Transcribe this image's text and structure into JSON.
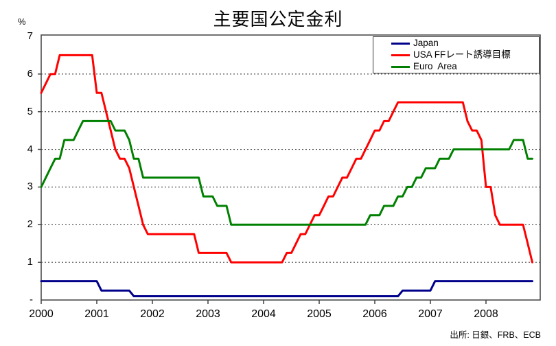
{
  "title": "主要国公定金利",
  "source_note": "出所: 日銀、FRB、ECB",
  "chart_data": {
    "type": "line",
    "title": "主要国公定金利",
    "xlabel": "",
    "ylabel": "%",
    "ylim": [
      0,
      7
    ],
    "grid": "horizontal-dotted",
    "legend_position": "top-right-inside",
    "x_start": "2000-01",
    "x_end": "2008-11",
    "x_ticks": [
      "2000",
      "2001",
      "2002",
      "2003",
      "2004",
      "2005",
      "2006",
      "2007",
      "2008"
    ],
    "y_ticks": [
      {
        "value": 7,
        "label": "7"
      },
      {
        "value": 6,
        "label": "6"
      },
      {
        "value": 5,
        "label": "5"
      },
      {
        "value": 4,
        "label": "4"
      },
      {
        "value": 3,
        "label": "3"
      },
      {
        "value": 2,
        "label": "2"
      },
      {
        "value": 1,
        "label": "1"
      },
      {
        "value": 0,
        "label": "-"
      }
    ],
    "series": [
      {
        "name": "Japan",
        "color": "#00008B",
        "rate_changes": [
          [
            "2000-01",
            0.5
          ],
          [
            "2001-02",
            0.25
          ],
          [
            "2001-09",
            0.1
          ],
          [
            "2006-07",
            0.25
          ],
          [
            "2007-02",
            0.5
          ]
        ]
      },
      {
        "name": "USA FFレート誘導目標",
        "color": "#FF0000",
        "rate_changes": [
          [
            "2000-01",
            5.5
          ],
          [
            "2000-02",
            5.75
          ],
          [
            "2000-03",
            6.0
          ],
          [
            "2000-05",
            6.5
          ],
          [
            "2001-01",
            5.5
          ],
          [
            "2001-03",
            5.0
          ],
          [
            "2001-04",
            4.5
          ],
          [
            "2001-05",
            4.0
          ],
          [
            "2001-06",
            3.75
          ],
          [
            "2001-08",
            3.5
          ],
          [
            "2001-09",
            3.0
          ],
          [
            "2001-10",
            2.5
          ],
          [
            "2001-11",
            2.0
          ],
          [
            "2001-12",
            1.75
          ],
          [
            "2002-11",
            1.25
          ],
          [
            "2003-06",
            1.0
          ],
          [
            "2004-06",
            1.25
          ],
          [
            "2004-08",
            1.5
          ],
          [
            "2004-09",
            1.75
          ],
          [
            "2004-11",
            2.0
          ],
          [
            "2004-12",
            2.25
          ],
          [
            "2005-02",
            2.5
          ],
          [
            "2005-03",
            2.75
          ],
          [
            "2005-05",
            3.0
          ],
          [
            "2005-06",
            3.25
          ],
          [
            "2005-08",
            3.5
          ],
          [
            "2005-09",
            3.75
          ],
          [
            "2005-11",
            4.0
          ],
          [
            "2005-12",
            4.25
          ],
          [
            "2006-01",
            4.5
          ],
          [
            "2006-03",
            4.75
          ],
          [
            "2006-05",
            5.0
          ],
          [
            "2006-06",
            5.25
          ],
          [
            "2007-09",
            4.75
          ],
          [
            "2007-10",
            4.5
          ],
          [
            "2007-12",
            4.25
          ],
          [
            "2008-01",
            3.0
          ],
          [
            "2008-03",
            2.25
          ],
          [
            "2008-04",
            2.0
          ],
          [
            "2008-10",
            1.5
          ],
          [
            "2008-11",
            1.0
          ]
        ]
      },
      {
        "name": "Euro  Area",
        "color": "#008000",
        "rate_changes": [
          [
            "2000-01",
            3.0
          ],
          [
            "2000-02",
            3.25
          ],
          [
            "2000-03",
            3.5
          ],
          [
            "2000-04",
            3.75
          ],
          [
            "2000-06",
            4.25
          ],
          [
            "2000-09",
            4.5
          ],
          [
            "2000-10",
            4.75
          ],
          [
            "2001-05",
            4.5
          ],
          [
            "2001-08",
            4.25
          ],
          [
            "2001-09",
            3.75
          ],
          [
            "2001-11",
            3.25
          ],
          [
            "2002-12",
            2.75
          ],
          [
            "2003-03",
            2.5
          ],
          [
            "2003-06",
            2.0
          ],
          [
            "2005-12",
            2.25
          ],
          [
            "2006-03",
            2.5
          ],
          [
            "2006-06",
            2.75
          ],
          [
            "2006-08",
            3.0
          ],
          [
            "2006-10",
            3.25
          ],
          [
            "2006-12",
            3.5
          ],
          [
            "2007-03",
            3.75
          ],
          [
            "2007-06",
            4.0
          ],
          [
            "2008-07",
            4.25
          ],
          [
            "2008-10",
            3.75
          ]
        ]
      }
    ]
  }
}
